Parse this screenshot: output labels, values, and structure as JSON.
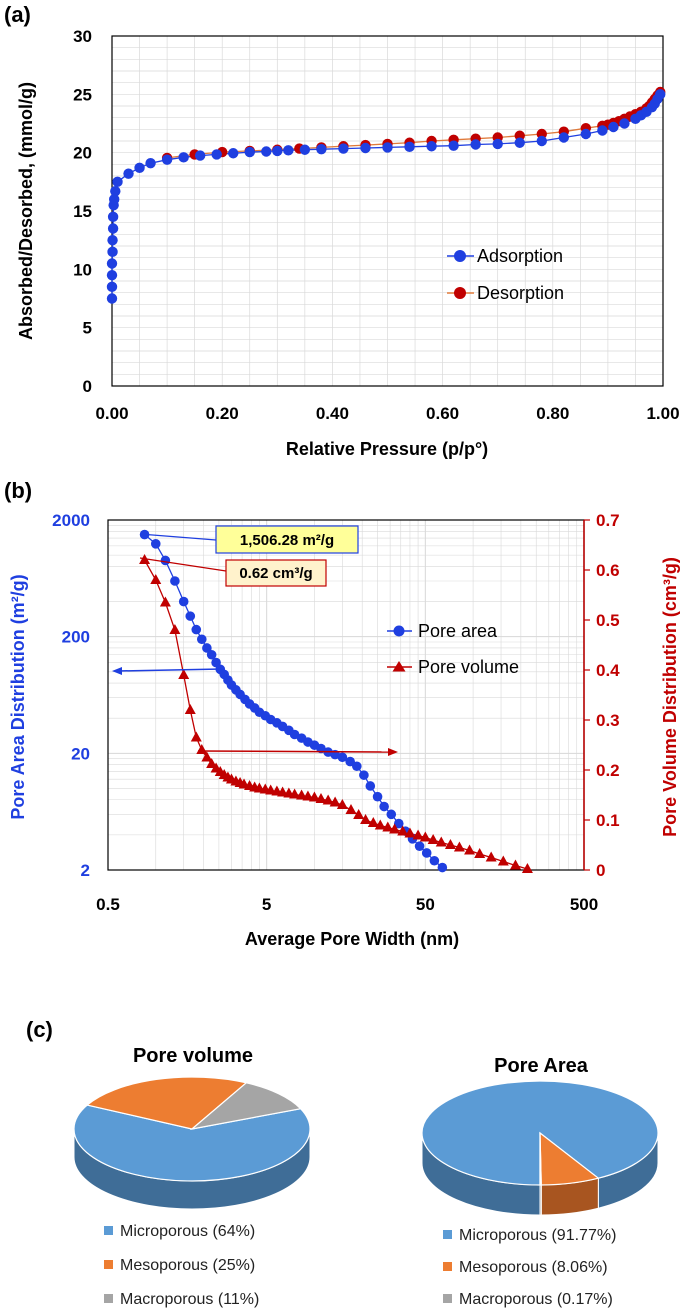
{
  "colors": {
    "blue": "#1f3fe0",
    "red": "#c00000",
    "orange_line": "#e07a3a",
    "pie_blue": "#5b9bd5",
    "pie_orange": "#ed7d31",
    "pie_gray": "#a5a5a5",
    "grid": "#d9d9d9"
  },
  "chart_data": [
    {
      "panel": "(a)",
      "type": "line",
      "title": "",
      "xlabel": "Relative Pressure (p/p°)",
      "ylabel": "Absorbed/Desorbed, (mmol/g)",
      "xlim": [
        0,
        1
      ],
      "ylim": [
        0,
        30
      ],
      "xticks": [
        "0.00",
        "0.20",
        "0.40",
        "0.60",
        "0.80",
        "1.00"
      ],
      "yticks": [
        "0",
        "5",
        "10",
        "15",
        "20",
        "25",
        "30"
      ],
      "legend": [
        "Adsorption",
        "Desorption"
      ],
      "series": [
        {
          "name": "Adsorption",
          "x": [
            0.0,
            0.0,
            0.0,
            0.0,
            0.001,
            0.001,
            0.002,
            0.002,
            0.003,
            0.004,
            0.006,
            0.01,
            0.03,
            0.05,
            0.07,
            0.1,
            0.13,
            0.16,
            0.19,
            0.22,
            0.25,
            0.28,
            0.3,
            0.32,
            0.35,
            0.38,
            0.42,
            0.46,
            0.5,
            0.54,
            0.58,
            0.62,
            0.66,
            0.7,
            0.74,
            0.78,
            0.82,
            0.86,
            0.89,
            0.91,
            0.93,
            0.95,
            0.96,
            0.97,
            0.98,
            0.985,
            0.99,
            0.995
          ],
          "y": [
            7.5,
            8.5,
            9.5,
            10.5,
            11.5,
            12.5,
            13.5,
            14.5,
            15.5,
            16.0,
            16.7,
            17.5,
            18.2,
            18.7,
            19.1,
            19.4,
            19.6,
            19.75,
            19.85,
            19.95,
            20.05,
            20.1,
            20.15,
            20.2,
            20.25,
            20.3,
            20.35,
            20.4,
            20.45,
            20.5,
            20.55,
            20.6,
            20.7,
            20.75,
            20.85,
            21.0,
            21.3,
            21.6,
            21.9,
            22.2,
            22.5,
            22.9,
            23.2,
            23.5,
            23.9,
            24.2,
            24.6,
            25.0
          ]
        },
        {
          "name": "Desorption",
          "x": [
            0.995,
            0.99,
            0.985,
            0.98,
            0.975,
            0.97,
            0.96,
            0.95,
            0.94,
            0.93,
            0.92,
            0.91,
            0.9,
            0.89,
            0.86,
            0.82,
            0.78,
            0.74,
            0.7,
            0.66,
            0.62,
            0.58,
            0.54,
            0.5,
            0.46,
            0.42,
            0.38,
            0.34,
            0.3,
            0.25,
            0.2,
            0.15,
            0.1
          ],
          "y": [
            25.2,
            24.9,
            24.6,
            24.3,
            24.0,
            23.8,
            23.5,
            23.3,
            23.1,
            22.9,
            22.7,
            22.55,
            22.4,
            22.3,
            22.1,
            21.8,
            21.6,
            21.45,
            21.3,
            21.2,
            21.1,
            21.0,
            20.85,
            20.75,
            20.65,
            20.55,
            20.45,
            20.35,
            20.25,
            20.15,
            20.05,
            19.85,
            19.55
          ]
        }
      ]
    },
    {
      "panel": "(b)",
      "type": "line",
      "xlabel": "Average Pore Width (nm)",
      "ylabel_left": "Pore Area Distribution (m²/g)",
      "ylabel_right": "Pore Volume Distribution (cm³/g)",
      "xscale": "log",
      "yscale_left": "log",
      "xlim": [
        0.5,
        500
      ],
      "ylim_left": [
        2,
        2000
      ],
      "ylim_right": [
        0,
        0.7
      ],
      "xticks": [
        "0.5",
        "5",
        "50",
        "500"
      ],
      "yticks_left": [
        "2",
        "20",
        "200",
        "2000"
      ],
      "yticks_right": [
        "0",
        "0.1",
        "0.2",
        "0.3",
        "0.4",
        "0.5",
        "0.6",
        "0.7"
      ],
      "legend": [
        "Pore area",
        "Pore volume"
      ],
      "callouts": [
        "1,506.28 m²/g",
        "0.62 cm³/g"
      ],
      "series": [
        {
          "name": "Pore area",
          "axis": "left",
          "x": [
            0.85,
            1.0,
            1.15,
            1.32,
            1.5,
            1.65,
            1.8,
            1.95,
            2.1,
            2.25,
            2.4,
            2.55,
            2.7,
            2.85,
            3.0,
            3.2,
            3.4,
            3.65,
            3.9,
            4.2,
            4.5,
            4.9,
            5.3,
            5.8,
            6.3,
            6.9,
            7.5,
            8.3,
            9.1,
            10.0,
            11.0,
            12.2,
            13.5,
            15.0,
            16.8,
            18.5,
            20.5,
            22.5,
            25.0,
            27.5,
            30.5,
            34.0,
            37.5,
            41.5,
            46.0,
            51.0,
            57.0,
            64.0
          ],
          "y": [
            1500,
            1250,
            900,
            600,
            400,
            300,
            230,
            190,
            160,
            140,
            120,
            105,
            95,
            85,
            77,
            70,
            64,
            58,
            53,
            49,
            45,
            42,
            39,
            36.5,
            34,
            31.5,
            29,
            27,
            25,
            23.5,
            22,
            20.5,
            19.5,
            18.5,
            17,
            15.5,
            13,
            10.5,
            8.5,
            7,
            6,
            5,
            4.3,
            3.7,
            3.2,
            2.8,
            2.4,
            2.1
          ]
        },
        {
          "name": "Pore volume",
          "axis": "right",
          "x": [
            0.85,
            1.0,
            1.15,
            1.32,
            1.5,
            1.65,
            1.8,
            1.95,
            2.1,
            2.25,
            2.4,
            2.55,
            2.7,
            2.85,
            3.0,
            3.2,
            3.4,
            3.6,
            3.9,
            4.2,
            4.5,
            4.9,
            5.3,
            5.8,
            6.3,
            6.9,
            7.5,
            8.3,
            9.1,
            10.0,
            11.0,
            12.2,
            13.5,
            15.0,
            17.0,
            19.0,
            21.0,
            23.5,
            26.0,
            29.0,
            32.0,
            36.0,
            40.0,
            45.0,
            50.0,
            56.0,
            63.0,
            72.0,
            82.0,
            95.0,
            110.0,
            130.0,
            155.0,
            185.0,
            220.0
          ],
          "y": [
            0.62,
            0.58,
            0.535,
            0.48,
            0.39,
            0.32,
            0.265,
            0.24,
            0.225,
            0.212,
            0.203,
            0.196,
            0.19,
            0.185,
            0.181,
            0.177,
            0.174,
            0.171,
            0.168,
            0.165,
            0.163,
            0.161,
            0.159,
            0.157,
            0.155,
            0.153,
            0.151,
            0.149,
            0.147,
            0.145,
            0.142,
            0.139,
            0.135,
            0.13,
            0.12,
            0.11,
            0.1,
            0.094,
            0.089,
            0.085,
            0.081,
            0.077,
            0.073,
            0.069,
            0.065,
            0.06,
            0.055,
            0.05,
            0.045,
            0.039,
            0.032,
            0.025,
            0.017,
            0.009,
            0.002
          ]
        }
      ]
    },
    {
      "panel": "(c)",
      "type": "pie",
      "title": "Pore volume",
      "labels": [
        "Microporous",
        "Mesoporous",
        "Macroporous"
      ],
      "values": [
        64,
        25,
        11
      ],
      "legend_labels": [
        "Microporous (64%)",
        "Mesoporous (25%)",
        "Macroporous (11%)"
      ]
    },
    {
      "panel": "(c)",
      "type": "pie",
      "title": "Pore Area",
      "labels": [
        "Microporous",
        "Mesoporous",
        "Macroporous"
      ],
      "values": [
        91.77,
        8.06,
        0.17
      ],
      "legend_labels": [
        "Microporous (91.77%)",
        "Mesoporous (8.06%)",
        "Macroporous (0.17%)"
      ]
    }
  ]
}
